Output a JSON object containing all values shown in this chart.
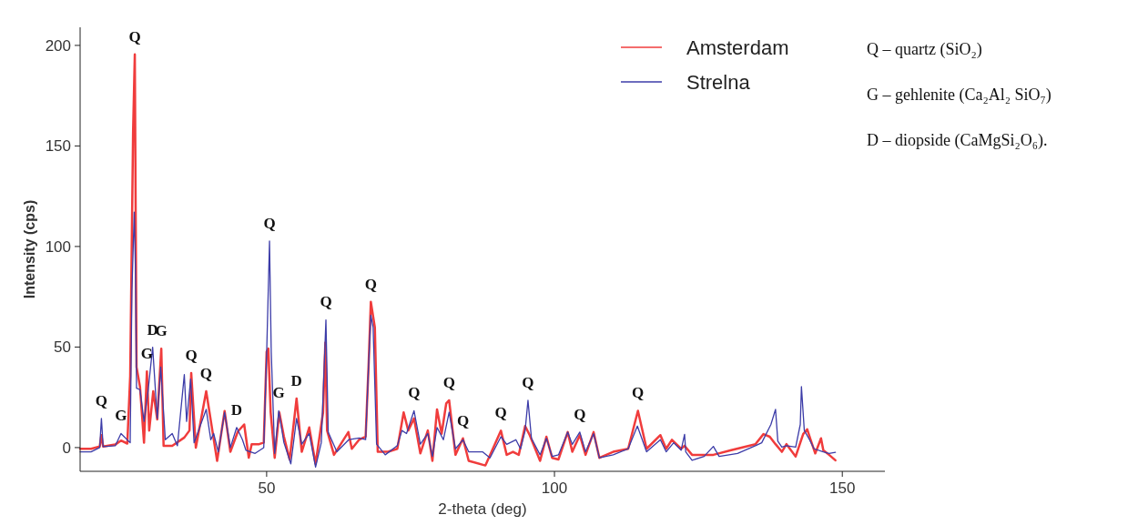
{
  "chart_data": {
    "type": "line",
    "xlabel": "2-theta (deg)",
    "ylabel": "Intensity (cps)",
    "xlim": [
      17.6,
      157.4
    ],
    "ylim": [
      -11.8,
      209
    ],
    "xticks": [
      50,
      100,
      150
    ],
    "yticks": [
      0,
      50,
      100,
      150,
      200
    ],
    "grid": false,
    "legend": "top right",
    "marker": "none",
    "line_style": "solid",
    "series": [
      {
        "name": "Amsterdam",
        "color": "#f03c3c",
        "x": [
          17.6,
          19.5,
          21.0,
          21.3,
          21.6,
          23.7,
          24.7,
          25.8,
          26.3,
          26.8,
          27.1,
          27.4,
          28.0,
          28.7,
          29.2,
          29.6,
          30.3,
          31.0,
          31.7,
          32.1,
          33.6,
          35.7,
          36.6,
          36.9,
          37.7,
          39.5,
          41.4,
          42.7,
          43.7,
          45.0,
          46.1,
          46.9,
          47.4,
          48.7,
          49.5,
          50.0,
          50.3,
          50.7,
          51.4,
          52.2,
          53.0,
          54.0,
          55.2,
          56.1,
          57.4,
          58.5,
          59.8,
          60.2,
          60.5,
          61.7,
          64.2,
          64.8,
          66.1,
          67.2,
          67.7,
          68.1,
          68.8,
          69.3,
          71.1,
          72.7,
          73.8,
          74.6,
          75.6,
          76.7,
          78.0,
          78.8,
          79.6,
          80.4,
          81.2,
          81.7,
          82.8,
          84.1,
          85.1,
          88.0,
          90.7,
          91.7,
          92.8,
          93.8,
          94.9,
          95.7,
          97.5,
          98.6,
          99.6,
          100.7,
          102.3,
          103.1,
          104.4,
          105.4,
          106.8,
          107.8,
          110.2,
          112.8,
          114.5,
          116.0,
          118.4,
          119.4,
          120.4,
          122.0,
          122.6,
          123.9,
          126.0,
          127.6,
          130.7,
          134.9,
          136.3,
          137.4,
          138.4,
          139.5,
          140.3,
          141.9,
          143.2,
          143.9,
          144.5,
          145.3,
          146.3,
          146.7,
          147.7,
          148.8
        ],
        "values": [
          -0.6,
          -0.6,
          0.5,
          6.2,
          0.5,
          1.5,
          3.5,
          2,
          35.6,
          156.6,
          195.5,
          40,
          30.3,
          2.4,
          37.9,
          8.5,
          28,
          14,
          49.2,
          0.9,
          0.9,
          5,
          8.5,
          37.1,
          0,
          28,
          -6.6,
          18.2,
          -2.1,
          8,
          11.5,
          -5,
          1.7,
          1.7,
          2.5,
          47.7,
          49.2,
          17.5,
          -5.1,
          17.5,
          5.5,
          -5.9,
          24.4,
          -2.1,
          10,
          -8.1,
          17.5,
          52.2,
          8.5,
          -3.6,
          7.7,
          -0.6,
          4,
          5.5,
          40.1,
          72.5,
          59.7,
          -2.1,
          -2.1,
          -0.6,
          17.5,
          8.5,
          14.5,
          -2.9,
          8.5,
          -6.6,
          19,
          6.9,
          22,
          23.5,
          -3.6,
          4.6,
          -6.6,
          -8.9,
          8.4,
          -3.6,
          -2.1,
          -3.6,
          10.7,
          6.2,
          -6.6,
          5.4,
          -5.1,
          -5.9,
          7.7,
          -2.1,
          6.2,
          -3.6,
          7.7,
          -5.1,
          -2.1,
          -0.6,
          18.3,
          -0.6,
          6.2,
          -0.6,
          3.9,
          -0.6,
          0.9,
          -3.6,
          -3.6,
          -3.6,
          -1.3,
          1.7,
          6.7,
          5.4,
          1.7,
          -2.1,
          1.7,
          -4.4,
          6.7,
          9.1,
          3.9,
          -2.9,
          4.6,
          -1.3,
          -3.6,
          -6.3
        ]
      },
      {
        "name": "Strelna",
        "color": "#3c3ca8",
        "x": [
          17.6,
          19.5,
          21.0,
          21.3,
          21.6,
          23.7,
          24.7,
          26.3,
          26.6,
          27.0,
          27.2,
          27.4,
          28.0,
          28.7,
          29.4,
          30.2,
          31.0,
          31.6,
          32.4,
          33.6,
          34.5,
          35.7,
          36.1,
          36.8,
          37.4,
          39.5,
          40.3,
          40.8,
          41.6,
          42.7,
          43.7,
          44.8,
          45.8,
          46.4,
          48.0,
          49.5,
          50.0,
          50.5,
          50.8,
          51.4,
          52.1,
          53.0,
          54.2,
          55.2,
          56.1,
          57.4,
          58.5,
          59.5,
          60.3,
          60.7,
          62.2,
          64.3,
          66.1,
          67.2,
          67.7,
          68.1,
          68.5,
          69.1,
          70.6,
          72.7,
          73.5,
          74.3,
          75.6,
          76.7,
          78.0,
          78.8,
          79.6,
          80.7,
          81.7,
          82.8,
          84.1,
          85.1,
          87.5,
          88.8,
          90.7,
          91.7,
          93.3,
          94.1,
          94.9,
          95.4,
          96.0,
          97.5,
          98.6,
          99.6,
          100.7,
          102.3,
          103.1,
          104.4,
          105.4,
          106.8,
          107.8,
          110.2,
          112.8,
          114.4,
          116.0,
          118.4,
          119.4,
          120.7,
          122.0,
          122.6,
          122.8,
          123.9,
          126.0,
          127.6,
          128.6,
          131.8,
          134.9,
          136.0,
          137.6,
          138.4,
          138.8,
          139.5,
          140.3,
          141.9,
          142.7,
          142.9,
          143.4,
          144.3,
          145.1,
          146.7,
          147.7,
          148.8
        ],
        "values": [
          -2.1,
          -2.1,
          0,
          14.5,
          0.5,
          0.9,
          7,
          2.4,
          77.9,
          117.1,
          90,
          29.5,
          28.8,
          13,
          28,
          49.9,
          14.5,
          40.1,
          3.9,
          7,
          0.9,
          36.3,
          13,
          34.1,
          2.4,
          19,
          3.9,
          7,
          -2.1,
          17.5,
          0,
          10,
          3.9,
          -1.3,
          -2.9,
          0,
          46.2,
          102.7,
          47.7,
          -2.9,
          18.3,
          2.5,
          -8.1,
          14.5,
          1.7,
          7,
          -9.7,
          2.5,
          63.5,
          7.7,
          -2.1,
          4,
          4.8,
          4,
          40.1,
          65.8,
          59.7,
          1.7,
          -3.6,
          1,
          8.5,
          7,
          18.3,
          1.7,
          7,
          -4.4,
          10,
          3.9,
          17.6,
          -0.6,
          3.9,
          -2.1,
          -2.1,
          -5.1,
          5.4,
          1.6,
          3.9,
          -0.6,
          8.4,
          23.5,
          4.6,
          -3.6,
          4.6,
          -4.4,
          -3.6,
          7.7,
          1.6,
          7.7,
          -2.1,
          6.9,
          -5.1,
          -3.6,
          -0.6,
          10.7,
          -2.1,
          3.9,
          -2.1,
          2.4,
          -1.3,
          6.6,
          -2.1,
          -6.3,
          -4.4,
          0.6,
          -4.4,
          -2.9,
          0.9,
          2.4,
          11.5,
          19,
          3.2,
          0.2,
          0.9,
          0.2,
          11.5,
          30.3,
          8.5,
          3.9,
          -0.6,
          -2.1,
          -2.9,
          -2.4
        ]
      }
    ],
    "annotations": [
      {
        "text": "Q",
        "x": 21.3,
        "y": 14.5
      },
      {
        "text": "G",
        "x": 24.7,
        "y": 7
      },
      {
        "text": "Q",
        "x": 27.1,
        "y": 195.5
      },
      {
        "text": "G",
        "x": 29.2,
        "y": 37.9
      },
      {
        "text": "D",
        "x": 30.2,
        "y": 49.9
      },
      {
        "text": "G",
        "x": 31.7,
        "y": 49.2
      },
      {
        "text": "Q",
        "x": 36.9,
        "y": 37.1
      },
      {
        "text": "Q",
        "x": 39.5,
        "y": 28
      },
      {
        "text": "D",
        "x": 44.8,
        "y": 10
      },
      {
        "text": "Q",
        "x": 50.5,
        "y": 102.7
      },
      {
        "text": "G",
        "x": 52.1,
        "y": 18.3
      },
      {
        "text": "D",
        "x": 55.2,
        "y": 24.4
      },
      {
        "text": "Q",
        "x": 60.3,
        "y": 63.5
      },
      {
        "text": "Q",
        "x": 68.1,
        "y": 72.5
      },
      {
        "text": "Q",
        "x": 75.6,
        "y": 18.3
      },
      {
        "text": "Q",
        "x": 81.7,
        "y": 23.5
      },
      {
        "text": "Q",
        "x": 84.1,
        "y": 4.6
      },
      {
        "text": "Q",
        "x": 90.7,
        "y": 8.4
      },
      {
        "text": "Q",
        "x": 95.4,
        "y": 23.5
      },
      {
        "text": "Q",
        "x": 104.4,
        "y": 7.7
      },
      {
        "text": "Q",
        "x": 114.5,
        "y": 18.3
      },
      "Q – quartz (SiO₂)",
      "G – gehlenite (Ca₂Al₂ SiO₇)",
      "D – diopside (CaMgSi₂O₆)."
    ]
  }
}
